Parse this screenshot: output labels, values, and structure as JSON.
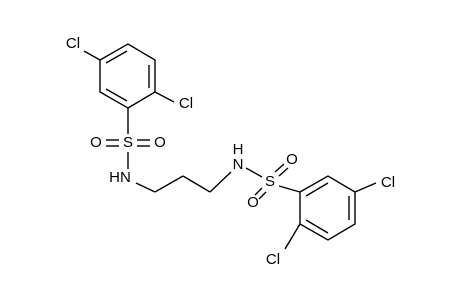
{
  "atoms": [
    "Cl",
    "Cl",
    "O",
    "S",
    "O",
    "HN",
    "H",
    "N",
    "O",
    "S",
    "O",
    "Cl",
    "Cl"
  ]
}
